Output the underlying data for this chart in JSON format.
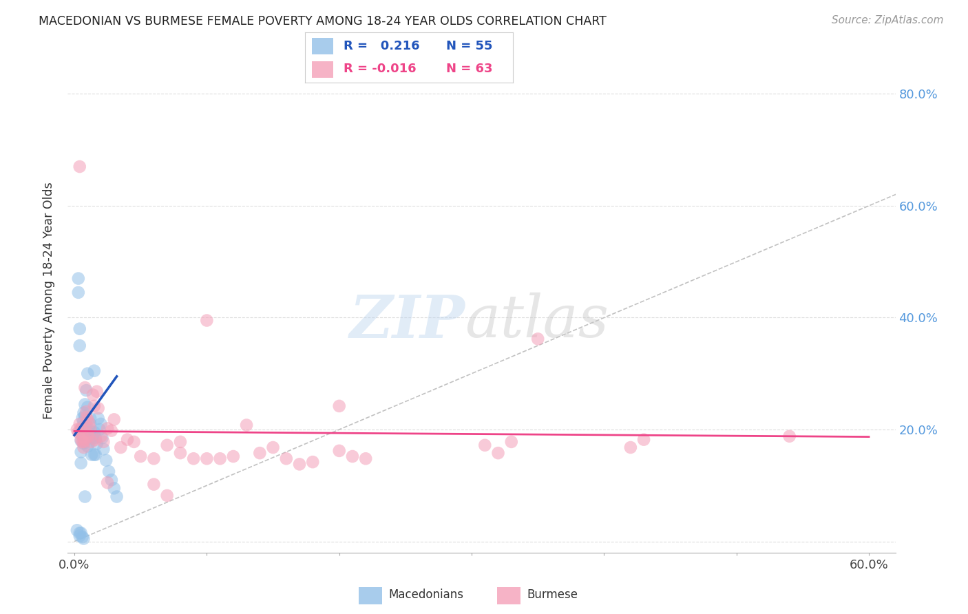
{
  "title": "MACEDONIAN VS BURMESE FEMALE POVERTY AMONG 18-24 YEAR OLDS CORRELATION CHART",
  "source": "Source: ZipAtlas.com",
  "ylabel": "Female Poverty Among 18-24 Year Olds",
  "xlim": [
    -0.005,
    0.62
  ],
  "ylim": [
    -0.02,
    0.88
  ],
  "macedonian_R": 0.216,
  "macedonian_N": 55,
  "burmese_R": -0.016,
  "burmese_N": 63,
  "macedonian_color": "#92C0E8",
  "burmese_color": "#F4A0B8",
  "macedonian_line_color": "#2255BB",
  "burmese_line_color": "#EE4488",
  "diagonal_color": "#BBBBBB",
  "macedonian_x": [
    0.002,
    0.003,
    0.003,
    0.004,
    0.004,
    0.004,
    0.005,
    0.005,
    0.005,
    0.005,
    0.006,
    0.006,
    0.006,
    0.007,
    0.007,
    0.007,
    0.008,
    0.008,
    0.008,
    0.009,
    0.009,
    0.01,
    0.01,
    0.01,
    0.011,
    0.011,
    0.012,
    0.012,
    0.013,
    0.013,
    0.014,
    0.015,
    0.015,
    0.016,
    0.016,
    0.017,
    0.018,
    0.019,
    0.02,
    0.021,
    0.022,
    0.024,
    0.026,
    0.028,
    0.03,
    0.032,
    0.004,
    0.005,
    0.006,
    0.007,
    0.008,
    0.009,
    0.01,
    0.012,
    0.015
  ],
  "macedonian_y": [
    0.02,
    0.47,
    0.445,
    0.38,
    0.35,
    0.015,
    0.2,
    0.18,
    0.16,
    0.14,
    0.22,
    0.205,
    0.19,
    0.23,
    0.215,
    0.175,
    0.245,
    0.225,
    0.205,
    0.21,
    0.185,
    0.24,
    0.195,
    0.17,
    0.2,
    0.175,
    0.21,
    0.185,
    0.195,
    0.155,
    0.185,
    0.195,
    0.155,
    0.185,
    0.155,
    0.175,
    0.22,
    0.2,
    0.21,
    0.185,
    0.165,
    0.145,
    0.125,
    0.11,
    0.095,
    0.08,
    0.01,
    0.015,
    0.008,
    0.005,
    0.08,
    0.27,
    0.3,
    0.22,
    0.305
  ],
  "burmese_x": [
    0.002,
    0.003,
    0.004,
    0.004,
    0.005,
    0.005,
    0.006,
    0.006,
    0.007,
    0.007,
    0.008,
    0.008,
    0.009,
    0.009,
    0.01,
    0.01,
    0.011,
    0.011,
    0.012,
    0.013,
    0.014,
    0.015,
    0.016,
    0.017,
    0.018,
    0.02,
    0.022,
    0.025,
    0.028,
    0.03,
    0.035,
    0.04,
    0.045,
    0.05,
    0.06,
    0.07,
    0.08,
    0.09,
    0.1,
    0.11,
    0.12,
    0.13,
    0.14,
    0.15,
    0.16,
    0.17,
    0.18,
    0.2,
    0.21,
    0.22,
    0.31,
    0.32,
    0.33,
    0.42,
    0.43,
    0.54,
    0.1,
    0.2,
    0.35,
    0.06,
    0.07,
    0.08,
    0.025
  ],
  "burmese_y": [
    0.2,
    0.195,
    0.67,
    0.21,
    0.182,
    0.202,
    0.178,
    0.188,
    0.168,
    0.178,
    0.275,
    0.182,
    0.222,
    0.232,
    0.218,
    0.192,
    0.188,
    0.212,
    0.202,
    0.178,
    0.262,
    0.242,
    0.182,
    0.268,
    0.238,
    0.188,
    0.178,
    0.202,
    0.198,
    0.218,
    0.168,
    0.182,
    0.178,
    0.152,
    0.148,
    0.172,
    0.158,
    0.148,
    0.395,
    0.148,
    0.152,
    0.208,
    0.158,
    0.168,
    0.148,
    0.138,
    0.142,
    0.162,
    0.152,
    0.148,
    0.172,
    0.158,
    0.178,
    0.168,
    0.182,
    0.188,
    0.148,
    0.242,
    0.362,
    0.102,
    0.082,
    0.178,
    0.105
  ],
  "watermark_zip": "ZIP",
  "watermark_atlas": "atlas",
  "background_color": "#FFFFFF",
  "grid_color": "#DDDDDD"
}
